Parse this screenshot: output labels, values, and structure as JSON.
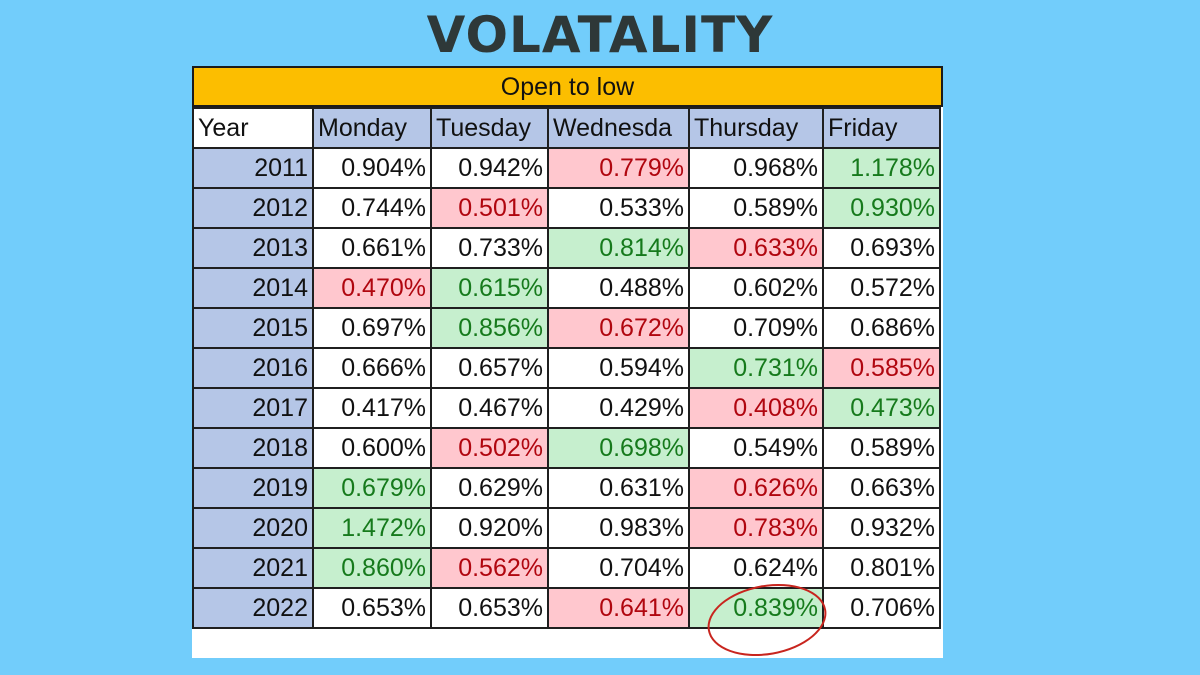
{
  "title": "VOLATALITY",
  "table": {
    "banner": "Open to low",
    "columns": [
      "Year",
      "Monday",
      "Tuesday",
      "Wednesda",
      "Thursday",
      "Friday"
    ],
    "rows": [
      {
        "year": "2011",
        "values": [
          {
            "text": "0.904%",
            "status": "neutral"
          },
          {
            "text": "0.942%",
            "status": "neutral"
          },
          {
            "text": "0.779%",
            "status": "low"
          },
          {
            "text": "0.968%",
            "status": "neutral"
          },
          {
            "text": "1.178%",
            "status": "high"
          }
        ]
      },
      {
        "year": "2012",
        "values": [
          {
            "text": "0.744%",
            "status": "neutral"
          },
          {
            "text": "0.501%",
            "status": "low"
          },
          {
            "text": "0.533%",
            "status": "neutral"
          },
          {
            "text": "0.589%",
            "status": "neutral"
          },
          {
            "text": "0.930%",
            "status": "high"
          }
        ]
      },
      {
        "year": "2013",
        "values": [
          {
            "text": "0.661%",
            "status": "neutral"
          },
          {
            "text": "0.733%",
            "status": "neutral"
          },
          {
            "text": "0.814%",
            "status": "high"
          },
          {
            "text": "0.633%",
            "status": "low"
          },
          {
            "text": "0.693%",
            "status": "neutral"
          }
        ]
      },
      {
        "year": "2014",
        "values": [
          {
            "text": "0.470%",
            "status": "low"
          },
          {
            "text": "0.615%",
            "status": "high"
          },
          {
            "text": "0.488%",
            "status": "neutral"
          },
          {
            "text": "0.602%",
            "status": "neutral"
          },
          {
            "text": "0.572%",
            "status": "neutral"
          }
        ]
      },
      {
        "year": "2015",
        "values": [
          {
            "text": "0.697%",
            "status": "neutral"
          },
          {
            "text": "0.856%",
            "status": "high"
          },
          {
            "text": "0.672%",
            "status": "low"
          },
          {
            "text": "0.709%",
            "status": "neutral"
          },
          {
            "text": "0.686%",
            "status": "neutral"
          }
        ]
      },
      {
        "year": "2016",
        "values": [
          {
            "text": "0.666%",
            "status": "neutral"
          },
          {
            "text": "0.657%",
            "status": "neutral"
          },
          {
            "text": "0.594%",
            "status": "neutral"
          },
          {
            "text": "0.731%",
            "status": "high"
          },
          {
            "text": "0.585%",
            "status": "low"
          }
        ]
      },
      {
        "year": "2017",
        "values": [
          {
            "text": "0.417%",
            "status": "neutral"
          },
          {
            "text": "0.467%",
            "status": "neutral"
          },
          {
            "text": "0.429%",
            "status": "neutral"
          },
          {
            "text": "0.408%",
            "status": "low"
          },
          {
            "text": "0.473%",
            "status": "high"
          }
        ]
      },
      {
        "year": "2018",
        "values": [
          {
            "text": "0.600%",
            "status": "neutral"
          },
          {
            "text": "0.502%",
            "status": "low"
          },
          {
            "text": "0.698%",
            "status": "high"
          },
          {
            "text": "0.549%",
            "status": "neutral"
          },
          {
            "text": "0.589%",
            "status": "neutral"
          }
        ]
      },
      {
        "year": "2019",
        "values": [
          {
            "text": "0.679%",
            "status": "high"
          },
          {
            "text": "0.629%",
            "status": "neutral"
          },
          {
            "text": "0.631%",
            "status": "neutral"
          },
          {
            "text": "0.626%",
            "status": "low"
          },
          {
            "text": "0.663%",
            "status": "neutral"
          }
        ]
      },
      {
        "year": "2020",
        "values": [
          {
            "text": "1.472%",
            "status": "high"
          },
          {
            "text": "0.920%",
            "status": "neutral"
          },
          {
            "text": "0.983%",
            "status": "neutral"
          },
          {
            "text": "0.783%",
            "status": "low"
          },
          {
            "text": "0.932%",
            "status": "neutral"
          }
        ]
      },
      {
        "year": "2021",
        "values": [
          {
            "text": "0.860%",
            "status": "high"
          },
          {
            "text": "0.562%",
            "status": "low"
          },
          {
            "text": "0.704%",
            "status": "neutral"
          },
          {
            "text": "0.624%",
            "status": "neutral"
          },
          {
            "text": "0.801%",
            "status": "neutral"
          }
        ]
      },
      {
        "year": "2022",
        "values": [
          {
            "text": "0.653%",
            "status": "neutral"
          },
          {
            "text": "0.653%",
            "status": "neutral"
          },
          {
            "text": "0.641%",
            "status": "low"
          },
          {
            "text": "0.839%",
            "status": "high"
          },
          {
            "text": "0.706%",
            "status": "neutral"
          }
        ]
      }
    ]
  },
  "colors": {
    "background": "#72cdfb",
    "banner": "#fcbe00",
    "header_fill": "#b5c6e7",
    "high_fill": "#c6efce",
    "high_text": "#167a1c",
    "low_fill": "#ffc7ce",
    "low_text": "#b0060f",
    "circle": "#c8251e"
  }
}
